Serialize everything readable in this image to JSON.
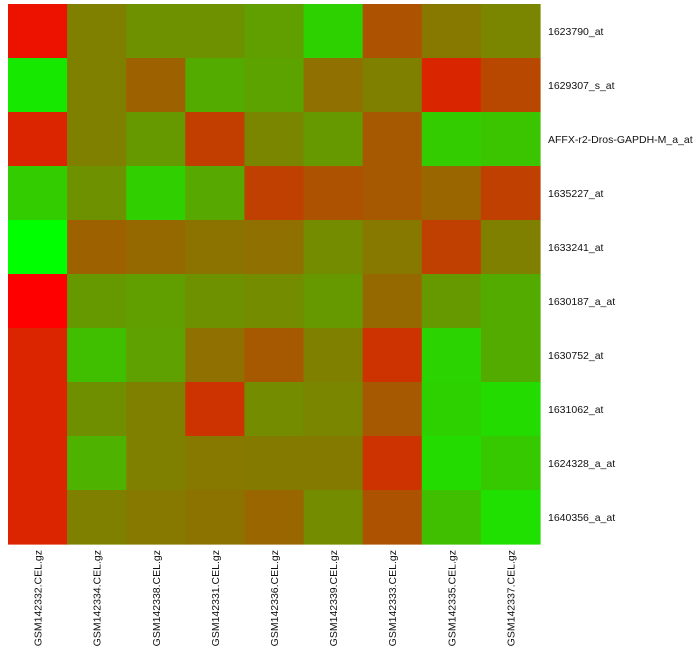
{
  "chart_data": {
    "type": "heatmap",
    "rows": [
      "1623790_at",
      "1629307_s_at",
      "AFFX-r2-Dros-GAPDH-M_a_at",
      "1635227_at",
      "1633241_at",
      "1630187_a_at",
      "1630752_at",
      "1631062_at",
      "1624328_a_at",
      "1640356_a_at"
    ],
    "columns": [
      "GSM142332.CEL.gz",
      "GSM142334.CEL.gz",
      "GSM142338.CEL.gz",
      "GSM142331.CEL.gz",
      "GSM142336.CEL.gz",
      "GSM142339.CEL.gz",
      "GSM142333.CEL.gz",
      "GSM142335.CEL.gz",
      "GSM142337.CEL.gz"
    ],
    "color_scale": {
      "low": "#00ff00",
      "high": "#ff0000"
    },
    "values": [
      [
        0.93,
        0.5,
        0.43,
        0.43,
        0.38,
        0.18,
        0.68,
        0.53,
        0.48
      ],
      [
        0.09,
        0.5,
        0.62,
        0.33,
        0.36,
        0.56,
        0.5,
        0.85,
        0.72
      ],
      [
        0.86,
        0.5,
        0.4,
        0.76,
        0.48,
        0.4,
        0.65,
        0.2,
        0.23
      ],
      [
        0.2,
        0.43,
        0.19,
        0.34,
        0.75,
        0.68,
        0.65,
        0.6,
        0.75
      ],
      [
        0.0,
        0.62,
        0.59,
        0.55,
        0.56,
        0.45,
        0.53,
        0.75,
        0.5
      ],
      [
        1.0,
        0.4,
        0.38,
        0.43,
        0.45,
        0.4,
        0.59,
        0.4,
        0.33
      ],
      [
        0.86,
        0.25,
        0.37,
        0.56,
        0.65,
        0.5,
        0.8,
        0.17,
        0.33
      ],
      [
        0.86,
        0.44,
        0.5,
        0.8,
        0.45,
        0.48,
        0.65,
        0.18,
        0.14
      ],
      [
        0.86,
        0.3,
        0.5,
        0.53,
        0.52,
        0.52,
        0.8,
        0.14,
        0.21
      ],
      [
        0.86,
        0.5,
        0.53,
        0.55,
        0.6,
        0.45,
        0.68,
        0.25,
        0.12
      ]
    ]
  }
}
